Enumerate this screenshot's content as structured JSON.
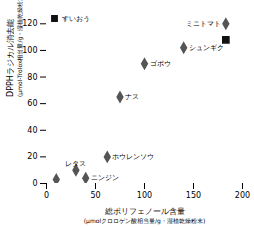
{
  "chart_data": {
    "type": "scatter",
    "xlabel": [
      "総ポリフェノール含量",
      "(μmolクロロゲン酸相当量/g・湿植乾燥粉末)"
    ],
    "ylabel": [
      "DPPHラジカル消去能",
      "(μmol-Trolox相当量/g・湿植乾燥粉末)"
    ],
    "series": [
      {
        "color": "#555555",
        "marker": "diamond",
        "x": [
          10,
          30,
          40,
          62,
          75,
          100,
          140,
          183
        ],
        "values": [
          3,
          10,
          4,
          20,
          65,
          90,
          102,
          120
        ],
        "labels": [
          null,
          "レタス",
          "ニンジン",
          "ホウレンソウ",
          "ナス",
          "ゴボウ",
          "シュンギク",
          "ミニトマト"
        ]
      },
      {
        "name": "すいおう",
        "color": "#111111",
        "marker": "square",
        "x": [
          183
        ],
        "values": [
          108
        ]
      }
    ],
    "xlim": [
      0,
      200
    ],
    "ylim": [
      0,
      130
    ],
    "xticks": [
      0,
      50,
      100,
      150,
      200
    ],
    "yticks": [
      0,
      20,
      40,
      60,
      80,
      100,
      120
    ],
    "grid": false,
    "legend": "upper left"
  }
}
